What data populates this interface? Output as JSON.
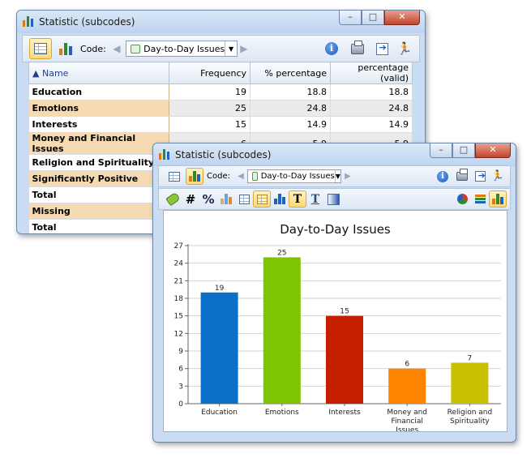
{
  "back_window": {
    "title": "Statistic (subcodes)",
    "code_label": "Code:",
    "code_value": "Day-to-Day Issues",
    "columns": [
      "Name",
      "Frequency",
      "% percentage",
      "percentage (valid)"
    ],
    "rows": [
      {
        "name": "Education",
        "frequency": "19",
        "percentage": "18.8",
        "valid": "18.8"
      },
      {
        "name": "Emotions",
        "frequency": "25",
        "percentage": "24.8",
        "valid": "24.8"
      },
      {
        "name": "Interests",
        "frequency": "15",
        "percentage": "14.9",
        "valid": "14.9"
      },
      {
        "name": "Money and Financial Issues",
        "frequency": "6",
        "percentage": "5.9",
        "valid": "5.9"
      },
      {
        "name": "Religion and Spirituality",
        "frequency": "",
        "percentage": "",
        "valid": ""
      },
      {
        "name": "Significantly Positive",
        "frequency": "",
        "percentage": "",
        "valid": ""
      },
      {
        "name": "Total",
        "frequency": "",
        "percentage": "",
        "valid": ""
      },
      {
        "name": "Missing",
        "frequency": "",
        "percentage": "",
        "valid": ""
      },
      {
        "name": "Total",
        "frequency": "",
        "percentage": "",
        "valid": ""
      }
    ]
  },
  "front_window": {
    "title": "Statistic (subcodes)",
    "code_label": "Code:",
    "code_value": "Day-to-Day Issues",
    "format_buttons": {
      "hash": "#",
      "percent": "%",
      "text_t": "T",
      "text_t2": "T"
    }
  },
  "window_buttons": {
    "minimize": "–",
    "maximize": "□",
    "close": "✕"
  },
  "colors": {
    "accent_selected": "#ffd978",
    "title_bar": "#bdd3ee"
  },
  "chart_data": {
    "type": "bar",
    "title": "Day-to-Day Issues",
    "categories": [
      [
        "Education"
      ],
      [
        "Emotions"
      ],
      [
        "Interests"
      ],
      [
        "Money and",
        "Financial",
        "Issues"
      ],
      [
        "Religion and",
        "Spirituality"
      ]
    ],
    "values": [
      19,
      25,
      15,
      6,
      7
    ],
    "bar_colors": [
      "#0a70c8",
      "#7cc500",
      "#c51f00",
      "#ff8400",
      "#c8c000"
    ],
    "ylim": [
      0,
      27
    ],
    "yticks": [
      0,
      3,
      6,
      9,
      12,
      15,
      18,
      21,
      24,
      27
    ],
    "grid": true,
    "legend": "none"
  }
}
